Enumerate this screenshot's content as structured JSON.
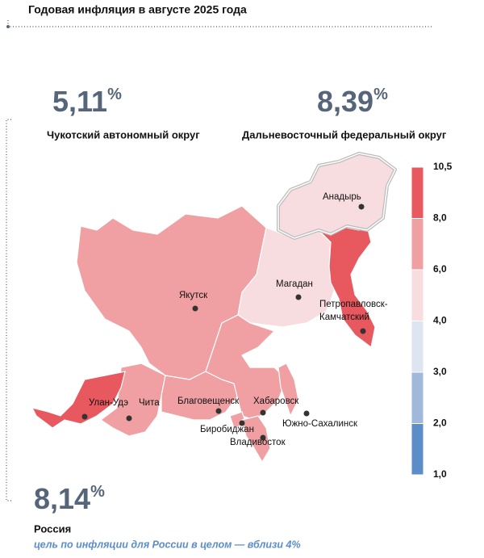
{
  "title": "Годовая инфляция в августе 2025 года",
  "highlights": [
    {
      "value": "5,11",
      "unit": "%",
      "label": "Чукотский автономный округ"
    },
    {
      "value": "8,39",
      "unit": "%",
      "label": "Дальневосточный федеральный округ"
    }
  ],
  "russia": {
    "value": "8,14",
    "unit": "%",
    "label": "Россия",
    "note": "цель по инфляции для России в целом — вблизи 4%"
  },
  "cities": [
    {
      "name": "Анадырь"
    },
    {
      "name": "Якутск"
    },
    {
      "name": "Магадан"
    },
    {
      "name_lines": [
        "Петропавловск-",
        "Камчатский"
      ]
    },
    {
      "name": "Улан-Удэ"
    },
    {
      "name": "Чита"
    },
    {
      "name": "Благовещенск"
    },
    {
      "name": "Хабаровск"
    },
    {
      "name": "Биробиджан"
    },
    {
      "name": "Владивосток"
    },
    {
      "name": "Южно-Сахалинск"
    }
  ],
  "legend": {
    "ticks": [
      "10,5",
      "8,0",
      "6,0",
      "4,0",
      "3,0",
      "2,0",
      "1,0"
    ],
    "colors": [
      "#e8585f",
      "#f0a0a2",
      "#f8dde0",
      "#dde5f1",
      "#a0b8da",
      "#5b8dc9"
    ]
  }
}
